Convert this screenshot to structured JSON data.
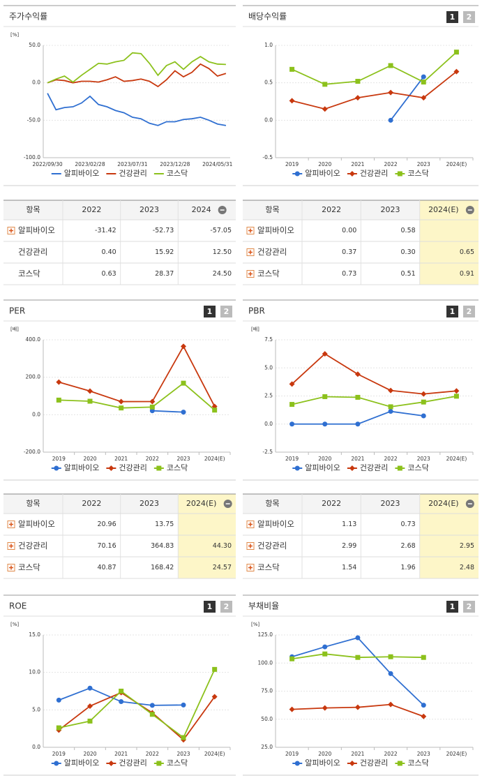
{
  "chart_data": [
    {
      "type": "line",
      "title": "주가수익률",
      "unit": "[%]",
      "markers": false,
      "categories": [
        "2022/09/30",
        null,
        null,
        null,
        null,
        "2023/02/28",
        null,
        null,
        null,
        null,
        "2023/07/31",
        null,
        null,
        null,
        null,
        "2023/12/28",
        null,
        null,
        null,
        null,
        "2024/05/31",
        null
      ],
      "series": [
        {
          "name": "알피바이오",
          "color": "#2f6fd1",
          "values": [
            -14,
            -36,
            -33,
            -32,
            -27,
            -18,
            -29,
            -32,
            -37,
            -40,
            -46,
            -48,
            -54,
            -57,
            -52,
            -52,
            -49,
            -48,
            -46,
            -50,
            -55,
            -57.05
          ]
        },
        {
          "name": "건강관리",
          "color": "#c8380e",
          "values": [
            0,
            4,
            3,
            0,
            2,
            2,
            1,
            4,
            8,
            2,
            3,
            5,
            2,
            -5,
            4,
            16,
            8,
            14,
            25,
            19,
            9,
            12.5
          ]
        },
        {
          "name": "코스닥",
          "color": "#8cc11c",
          "values": [
            0,
            5,
            9,
            1,
            10,
            18,
            26,
            25,
            28,
            30,
            40,
            39,
            26,
            10,
            23,
            28,
            18,
            28,
            35,
            28,
            25,
            24.5
          ]
        }
      ],
      "ylim": [
        -100,
        50
      ],
      "yticks": [
        {
          "value": 50,
          "label": "50.0"
        },
        {
          "value": 0,
          "label": "0.0"
        },
        {
          "value": -50,
          "label": "-50.0"
        },
        {
          "value": -100,
          "label": "-100.0"
        }
      ]
    },
    {
      "type": "line",
      "title": "배당수익률",
      "buttons": [
        "1",
        "2"
      ],
      "markers": true,
      "categories": [
        "2019",
        "2020",
        "2021",
        "2022",
        "2023",
        "2024(E)"
      ],
      "series": [
        {
          "name": "알피바이오",
          "color": "#2f6fd1",
          "values": [
            null,
            null,
            null,
            0.0,
            0.58,
            null
          ]
        },
        {
          "name": "건강관리",
          "color": "#c8380e",
          "values": [
            0.26,
            0.15,
            0.3,
            0.37,
            0.3,
            0.65
          ]
        },
        {
          "name": "코스닥",
          "color": "#8cc11c",
          "values": [
            0.68,
            0.48,
            0.52,
            0.73,
            0.51,
            0.91
          ]
        }
      ],
      "ylim": [
        -0.5,
        1.0
      ],
      "yticks": [
        {
          "value": 1,
          "label": "1.0"
        },
        0.5,
        {
          "value": 0,
          "label": "0.0"
        },
        -0.5
      ]
    },
    {
      "type": "line",
      "title": "PER",
      "unit": "[배]",
      "buttons": [
        "1",
        "2"
      ],
      "markers": true,
      "categories": [
        "2019",
        "2020",
        "2021",
        "2022",
        "2023",
        "2024(E)"
      ],
      "series": [
        {
          "name": "알피바이오",
          "color": "#2f6fd1",
          "values": [
            null,
            null,
            null,
            20.96,
            13.75,
            null
          ]
        },
        {
          "name": "건강관리",
          "color": "#c8380e",
          "values": [
            174,
            126,
            70,
            70.16,
            364.83,
            44.3
          ]
        },
        {
          "name": "코스닥",
          "color": "#8cc11c",
          "values": [
            78,
            72,
            36,
            40.87,
            168.42,
            24.57
          ]
        }
      ],
      "ylim": [
        -200,
        400
      ],
      "yticks": [
        {
          "value": 400,
          "label": "400.0"
        },
        {
          "value": 200,
          "label": "200.0"
        },
        {
          "value": 0,
          "label": "0.0"
        },
        {
          "value": -200,
          "label": "-200.0"
        }
      ]
    },
    {
      "type": "line",
      "title": "PBR",
      "unit": "[배]",
      "buttons": [
        "1",
        "2"
      ],
      "markers": true,
      "categories": [
        "2019",
        "2020",
        "2021",
        "2022",
        "2023",
        "2024(E)"
      ],
      "series": [
        {
          "name": "알피바이오",
          "color": "#2f6fd1",
          "values": [
            0,
            0,
            0,
            1.13,
            0.73,
            null
          ]
        },
        {
          "name": "건강관리",
          "color": "#c8380e",
          "values": [
            3.56,
            6.25,
            4.44,
            2.99,
            2.68,
            2.95
          ]
        },
        {
          "name": "코스닥",
          "color": "#8cc11c",
          "values": [
            1.75,
            2.44,
            2.38,
            1.54,
            1.96,
            2.48
          ]
        }
      ],
      "ylim": [
        -2.5,
        7.5
      ],
      "yticks": [
        7.5,
        {
          "value": 5,
          "label": "5.0"
        },
        2.5,
        {
          "value": 0,
          "label": "0.0"
        },
        -2.5
      ]
    },
    {
      "type": "line",
      "title": "ROE",
      "unit": "[%]",
      "buttons": [
        "1",
        "2"
      ],
      "markers": true,
      "categories": [
        "2019",
        "2020",
        "2021",
        "2022",
        "2023",
        "2024(E)"
      ],
      "series": [
        {
          "name": "알피바이오",
          "color": "#2f6fd1",
          "values": [
            6.3,
            7.9,
            6.1,
            5.6,
            5.65,
            null
          ]
        },
        {
          "name": "건강관리",
          "color": "#c8380e",
          "values": [
            2.3,
            5.5,
            7.3,
            4.6,
            1.0,
            6.75
          ]
        },
        {
          "name": "코스닥",
          "color": "#8cc11c",
          "values": [
            2.6,
            3.5,
            7.5,
            4.4,
            1.3,
            10.4
          ]
        }
      ],
      "ylim": [
        0,
        15
      ],
      "yticks": [
        {
          "value": 15,
          "label": "15.0"
        },
        {
          "value": 10,
          "label": "10.0"
        },
        {
          "value": 5,
          "label": "5.0"
        },
        {
          "value": 0,
          "label": "0.0"
        }
      ]
    },
    {
      "type": "line",
      "title": "부채비율",
      "unit": "[%]",
      "buttons": [
        "1",
        "2"
      ],
      "markers": true,
      "categories": [
        "2019",
        "2020",
        "2021",
        "2022",
        "2023",
        "2024(E)"
      ],
      "series": [
        {
          "name": "알피바이오",
          "color": "#2f6fd1",
          "values": [
            105.6,
            114.4,
            122.5,
            90.6,
            62.5,
            null
          ]
        },
        {
          "name": "건강관리",
          "color": "#c8380e",
          "values": [
            58.75,
            60,
            60.6,
            63.1,
            52.5,
            null
          ]
        },
        {
          "name": "코스닥",
          "color": "#8cc11c",
          "values": [
            103.75,
            108.1,
            105,
            105.6,
            105,
            null
          ]
        }
      ],
      "ylim": [
        25,
        125
      ],
      "yticks": [
        {
          "value": 125,
          "label": "125.0"
        },
        {
          "value": 100,
          "label": "100.0"
        },
        {
          "value": 75,
          "label": "75.0"
        },
        {
          "value": 50,
          "label": "50.0"
        },
        {
          "value": 25,
          "label": "25.0"
        }
      ]
    }
  ],
  "tables": [
    {
      "columns": [
        "항목",
        "2022",
        "2023",
        "2024"
      ],
      "rows": [
        {
          "name": "알피바이오",
          "values": [
            "-31.42",
            "-52.73",
            "-57.05"
          ]
        },
        {
          "name": "건강관리",
          "values": [
            "0.40",
            "15.92",
            "12.50"
          ]
        },
        {
          "name": "코스닥",
          "values": [
            "0.63",
            "28.37",
            "24.50"
          ]
        }
      ]
    },
    {
      "columns": [
        "항목",
        "2022",
        "2023",
        "2024(E)"
      ],
      "rows": [
        {
          "name": "알피바이오",
          "values": [
            "0.00",
            "0.58",
            null
          ]
        },
        {
          "name": "건강관리",
          "values": [
            "0.37",
            "0.30",
            "0.65"
          ]
        },
        {
          "name": "코스닥",
          "values": [
            "0.73",
            "0.51",
            "0.91"
          ]
        }
      ]
    },
    {
      "columns": [
        "항목",
        "2022",
        "2023",
        "2024(E)"
      ],
      "rows": [
        {
          "name": "알피바이오",
          "values": [
            "20.96",
            "13.75",
            null
          ]
        },
        {
          "name": "건강관리",
          "values": [
            "70.16",
            "364.83",
            "44.30"
          ]
        },
        {
          "name": "코스닥",
          "values": [
            "40.87",
            "168.42",
            "24.57"
          ]
        }
      ]
    },
    {
      "columns": [
        "항목",
        "2022",
        "2023",
        "2024(E)"
      ],
      "rows": [
        {
          "name": "알피바이오",
          "values": [
            "1.13",
            "0.73",
            null
          ]
        },
        {
          "name": "건강관리",
          "values": [
            "2.99",
            "2.68",
            "2.95"
          ]
        },
        {
          "name": "코스닥",
          "values": [
            "1.54",
            "1.96",
            "2.48"
          ]
        }
      ]
    }
  ]
}
